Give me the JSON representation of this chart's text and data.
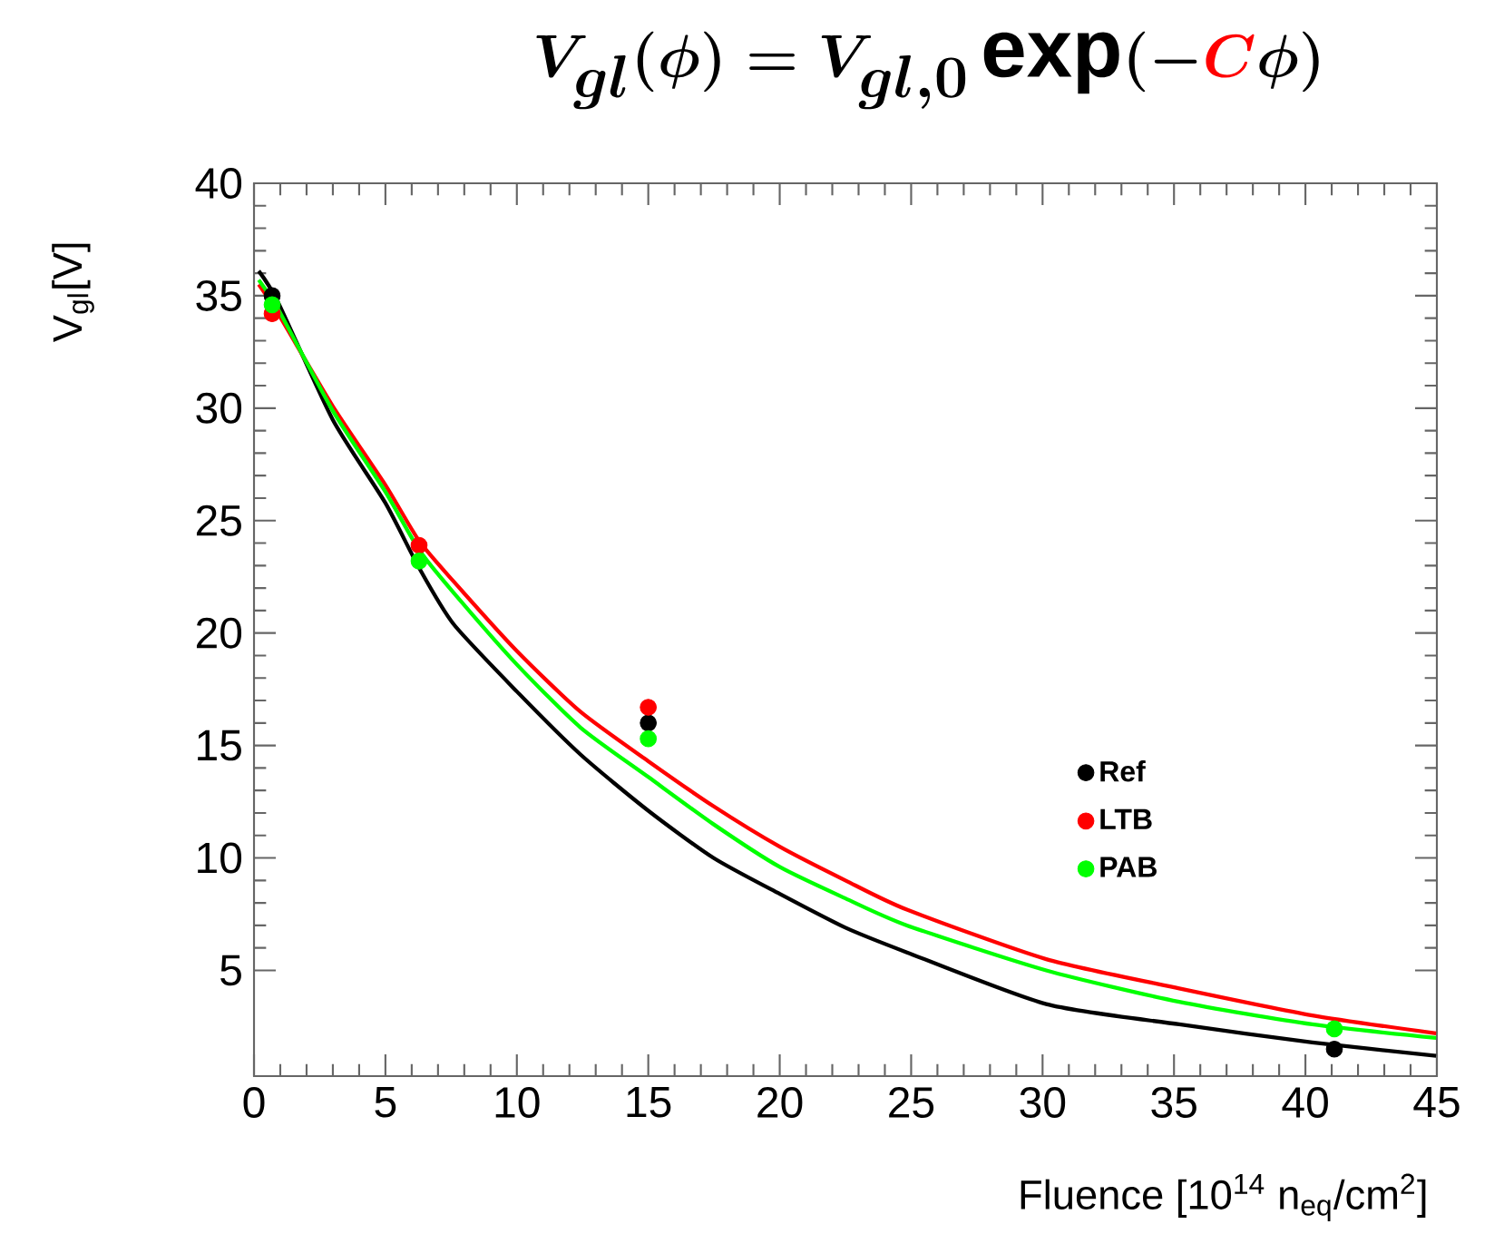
{
  "chart_data": {
    "type": "scatter",
    "title": "V_{gl}(\\phi) = V_{gl,0}\\exp(-{\\color{red}C}\\phi)",
    "xlabel": "Fluence [10$^{14}$ n$_{eq}$/cm$^{2}$]",
    "ylabel": "V$_{gl}$[V]",
    "xlim": [
      0,
      45
    ],
    "ylim": [
      0.3,
      40
    ],
    "xticks": [
      0,
      5,
      10,
      15,
      20,
      25,
      30,
      35,
      40,
      45
    ],
    "yticks": [
      5,
      10,
      15,
      20,
      25,
      30,
      35,
      40
    ],
    "legend": "right",
    "grid": false,
    "series": [
      {
        "name": "Ref",
        "color": "#000000",
        "marker": "circle",
        "x": [
          0.69,
          15.0,
          41.1
        ],
        "values": [
          35.0,
          16.0,
          1.5
        ]
      },
      {
        "name": "LTB",
        "color": "#ff0000",
        "marker": "circle",
        "x": [
          0.69,
          6.28,
          15.0
        ],
        "values": [
          34.2,
          23.9,
          16.7
        ]
      },
      {
        "name": "PAB",
        "color": "#00ff00",
        "marker": "circle",
        "x": [
          0.69,
          6.28,
          15.0,
          41.1
        ],
        "values": [
          34.6,
          23.2,
          15.3,
          2.4
        ]
      },
      {
        "color": "#000000",
        "type": "line",
        "marker": "none",
        "x": [
          0.18,
          0.92,
          2.99,
          4.99,
          6.28,
          7.59,
          10.0,
          12.42,
          15.0,
          17.48,
          20.0,
          22.5,
          24.84,
          30.14,
          35.2,
          40.26,
          44.97
        ],
        "values": [
          36.1,
          34.7,
          29.5,
          25.8,
          22.9,
          20.4,
          17.4,
          14.6,
          12.1,
          10.0,
          8.4,
          6.9,
          5.8,
          3.5,
          2.6,
          1.8,
          1.2
        ]
      },
      {
        "color": "#ff0000",
        "type": "line",
        "marker": "none",
        "x": [
          0.18,
          0.92,
          2.99,
          4.99,
          6.28,
          7.59,
          10.0,
          12.42,
          15.0,
          17.48,
          20.0,
          22.5,
          24.84,
          30.14,
          35.2,
          40.26,
          44.97
        ],
        "values": [
          35.5,
          34.2,
          30.1,
          26.6,
          24.1,
          22.3,
          19.2,
          16.5,
          14.3,
          12.3,
          10.5,
          9.0,
          7.7,
          5.5,
          4.2,
          3.0,
          2.2
        ]
      },
      {
        "color": "#00ff00",
        "type": "line",
        "marker": "none",
        "x": [
          0.18,
          0.92,
          2.99,
          4.99,
          6.28,
          7.59,
          10.0,
          12.42,
          15.0,
          17.48,
          20.0,
          22.5,
          24.84,
          30.14,
          35.2,
          40.26,
          44.97
        ],
        "values": [
          35.7,
          34.4,
          29.9,
          26.3,
          23.7,
          21.8,
          18.6,
          15.8,
          13.6,
          11.5,
          9.6,
          8.2,
          7.0,
          5.0,
          3.6,
          2.6,
          2.0
        ]
      }
    ]
  }
}
